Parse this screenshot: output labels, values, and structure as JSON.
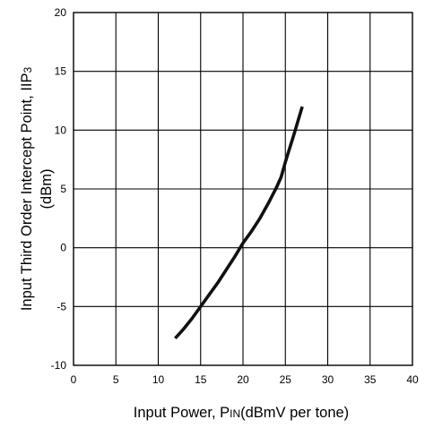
{
  "chart_data": {
    "type": "line",
    "xlabel": "Input Power, PIN(dBmV per tone)",
    "xlabel_parts": [
      "Input Power, P",
      "IN",
      "(dBmV per tone)"
    ],
    "ylabel_line1": "Input Third Order Intercept Point, IIP3",
    "ylabel_line1_parts": [
      "Input Third Order Intercept Point, IIP",
      "3"
    ],
    "ylabel_line2": "(dBm)",
    "xlim": [
      0,
      40
    ],
    "ylim": [
      -10,
      20
    ],
    "xticks": [
      0,
      5,
      10,
      15,
      20,
      25,
      30,
      35,
      40
    ],
    "xtick_labels": [
      "0",
      "5",
      "10",
      "15",
      "20",
      "25",
      "30",
      "35",
      "40"
    ],
    "yticks": [
      -10,
      -5,
      0,
      5,
      10,
      15,
      20
    ],
    "ytick_labels": [
      "-10",
      "-5",
      "0",
      "5",
      "10",
      "15",
      "20"
    ],
    "grid": true,
    "series": [
      {
        "color": "#111111",
        "x": [
          12,
          13,
          14,
          15,
          16,
          17,
          18,
          19,
          20,
          21,
          22,
          23,
          24,
          24.5,
          25,
          26,
          27
        ],
        "y": [
          -7.7,
          -6.9,
          -6.0,
          -5.0,
          -4.0,
          -3.0,
          -1.9,
          -0.8,
          0.4,
          1.4,
          2.5,
          3.8,
          5.2,
          6.0,
          7.3,
          9.6,
          12.0
        ]
      }
    ]
  }
}
